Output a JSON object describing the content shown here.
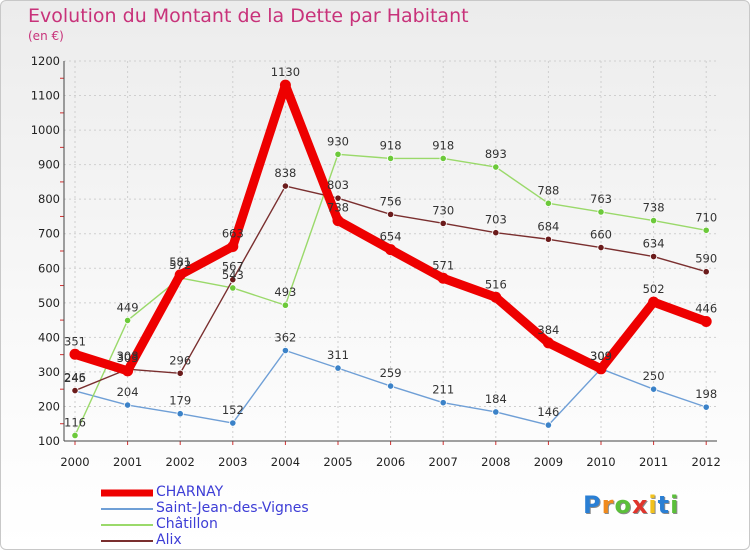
{
  "chart_data": {
    "type": "line",
    "title": "Evolution du Montant de la Dette par Habitant",
    "unit_label": "(en €)",
    "xlabel": "",
    "ylabel": "",
    "ylim": [
      100,
      1200
    ],
    "yticks": [
      100,
      200,
      300,
      400,
      500,
      600,
      700,
      800,
      900,
      1000,
      1100,
      1200
    ],
    "categories": [
      "2000",
      "2001",
      "2002",
      "2003",
      "2004",
      "2005",
      "2006",
      "2007",
      "2008",
      "2009",
      "2010",
      "2011",
      "2012"
    ],
    "series": [
      {
        "name": "CHARNAY",
        "color": "#ee0000",
        "marker_color": "#ee0000",
        "values": [
          351,
          303,
          581,
          663,
          1130,
          738,
          654,
          571,
          516,
          384,
          309,
          502,
          446
        ]
      },
      {
        "name": "Saint-Jean-des-Vignes",
        "color": "#6f9fd6",
        "marker_color": "#3b82c8",
        "values": [
          245,
          204,
          179,
          152,
          362,
          311,
          259,
          211,
          184,
          146,
          309,
          250,
          198
        ]
      },
      {
        "name": "Châtillon",
        "color": "#9ad96a",
        "marker_color": "#6cc93a",
        "values": [
          116,
          449,
          572,
          543,
          493,
          930,
          918,
          918,
          893,
          788,
          763,
          738,
          710
        ]
      },
      {
        "name": "Alix",
        "color": "#7a2f2f",
        "marker_color": "#6b1b1b",
        "values": [
          246,
          308,
          296,
          567,
          838,
          803,
          756,
          730,
          703,
          684,
          660,
          634,
          590
        ]
      }
    ],
    "legend_position": "bottom-left"
  },
  "logo": {
    "text": "Proxiti",
    "letters": [
      "P",
      "r",
      "o",
      "x",
      "i",
      "t",
      "i"
    ],
    "colors": [
      "#2a7fd4",
      "#f08a1c",
      "#5bbf3a",
      "#e0342c",
      "#f2c21c",
      "#2a7fd4",
      "#5bbf3a"
    ]
  }
}
